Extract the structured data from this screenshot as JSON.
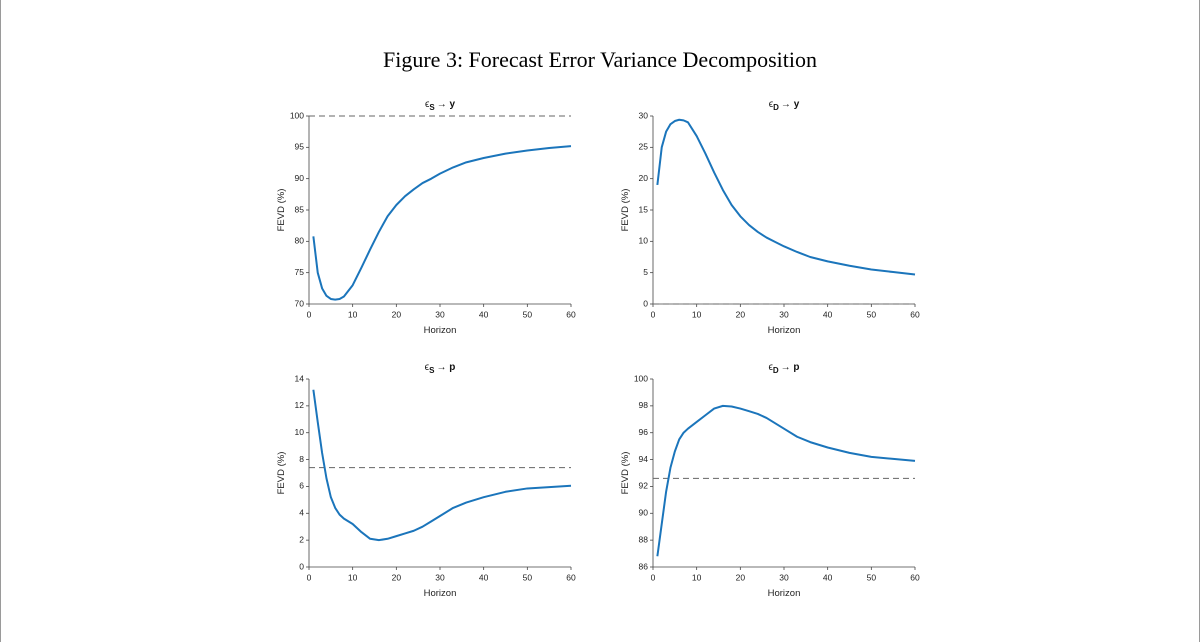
{
  "title": "Figure 3: Forecast Error Variance Decomposition",
  "chart_data": [
    {
      "type": "line",
      "title": {
        "symbol": "ϵ",
        "subscript": "S",
        "target": "→ y"
      },
      "x_label": "Horizon",
      "y_label": "FEVD (%)",
      "xlim": [
        0,
        60
      ],
      "xticks": [
        0,
        10,
        20,
        30,
        40,
        50,
        60
      ],
      "ylim": [
        70,
        100
      ],
      "yticks": [
        70,
        75,
        80,
        85,
        90,
        95,
        100
      ],
      "reference_line": 100,
      "x": [
        1,
        2,
        3,
        4,
        5,
        6,
        7,
        8,
        10,
        12,
        14,
        16,
        18,
        20,
        22,
        24,
        26,
        28,
        30,
        33,
        36,
        40,
        45,
        50,
        55,
        60
      ],
      "series": [
        {
          "color": "#1b75bb",
          "values": [
            80.8,
            75,
            72.5,
            71.3,
            70.8,
            70.7,
            70.8,
            71.2,
            73,
            75.8,
            78.7,
            81.5,
            84,
            85.8,
            87.2,
            88.3,
            89.3,
            90,
            90.8,
            91.8,
            92.6,
            93.3,
            94,
            94.5,
            94.9,
            95.2
          ]
        }
      ]
    },
    {
      "type": "line",
      "title": {
        "symbol": "ϵ",
        "subscript": "D",
        "target": "→ y"
      },
      "x_label": "Horizon",
      "y_label": "FEVD (%)",
      "xlim": [
        0,
        60
      ],
      "xticks": [
        0,
        10,
        20,
        30,
        40,
        50,
        60
      ],
      "ylim": [
        0,
        30
      ],
      "yticks": [
        0,
        5,
        10,
        15,
        20,
        25,
        30
      ],
      "reference_line": 0,
      "x": [
        1,
        2,
        3,
        4,
        5,
        6,
        7,
        8,
        10,
        12,
        14,
        16,
        18,
        20,
        22,
        24,
        26,
        28,
        30,
        33,
        36,
        40,
        45,
        50,
        55,
        60
      ],
      "series": [
        {
          "color": "#1b75bb",
          "values": [
            19,
            25,
            27.5,
            28.7,
            29.2,
            29.4,
            29.3,
            29,
            26.8,
            24,
            21,
            18.2,
            15.8,
            14,
            12.6,
            11.5,
            10.6,
            9.9,
            9.2,
            8.3,
            7.5,
            6.8,
            6.1,
            5.5,
            5.1,
            4.7
          ]
        }
      ]
    },
    {
      "type": "line",
      "title": {
        "symbol": "ϵ",
        "subscript": "S",
        "target": "→ p"
      },
      "x_label": "Horizon",
      "y_label": "FEVD (%)",
      "xlim": [
        0,
        60
      ],
      "xticks": [
        0,
        10,
        20,
        30,
        40,
        50,
        60
      ],
      "ylim": [
        0,
        14
      ],
      "yticks": [
        0,
        2,
        4,
        6,
        8,
        10,
        12,
        14
      ],
      "reference_line": 7.4,
      "x": [
        1,
        2,
        3,
        4,
        5,
        6,
        7,
        8,
        10,
        12,
        14,
        16,
        18,
        20,
        22,
        24,
        26,
        28,
        30,
        33,
        36,
        40,
        45,
        50,
        55,
        60
      ],
      "series": [
        {
          "color": "#1b75bb",
          "values": [
            13.2,
            10.8,
            8.5,
            6.6,
            5.2,
            4.4,
            3.9,
            3.6,
            3.2,
            2.6,
            2.1,
            2.0,
            2.1,
            2.3,
            2.5,
            2.7,
            3.0,
            3.4,
            3.8,
            4.4,
            4.8,
            5.2,
            5.6,
            5.85,
            5.95,
            6.05
          ]
        }
      ]
    },
    {
      "type": "line",
      "title": {
        "symbol": "ϵ",
        "subscript": "D",
        "target": "→ p"
      },
      "x_label": "Horizon",
      "y_label": "FEVD (%)",
      "xlim": [
        0,
        60
      ],
      "xticks": [
        0,
        10,
        20,
        30,
        40,
        50,
        60
      ],
      "ylim": [
        86,
        100
      ],
      "yticks": [
        86,
        88,
        90,
        92,
        94,
        96,
        98,
        100
      ],
      "reference_line": 92.6,
      "x": [
        1,
        2,
        3,
        4,
        5,
        6,
        7,
        8,
        10,
        12,
        14,
        16,
        18,
        20,
        22,
        24,
        26,
        28,
        30,
        33,
        36,
        40,
        45,
        50,
        55,
        60
      ],
      "series": [
        {
          "color": "#1b75bb",
          "values": [
            86.8,
            89.2,
            91.6,
            93.4,
            94.6,
            95.5,
            96.0,
            96.3,
            96.8,
            97.3,
            97.8,
            98.0,
            97.95,
            97.8,
            97.6,
            97.4,
            97.1,
            96.7,
            96.3,
            95.7,
            95.3,
            94.9,
            94.5,
            94.2,
            94.05,
            93.9
          ]
        }
      ]
    }
  ]
}
